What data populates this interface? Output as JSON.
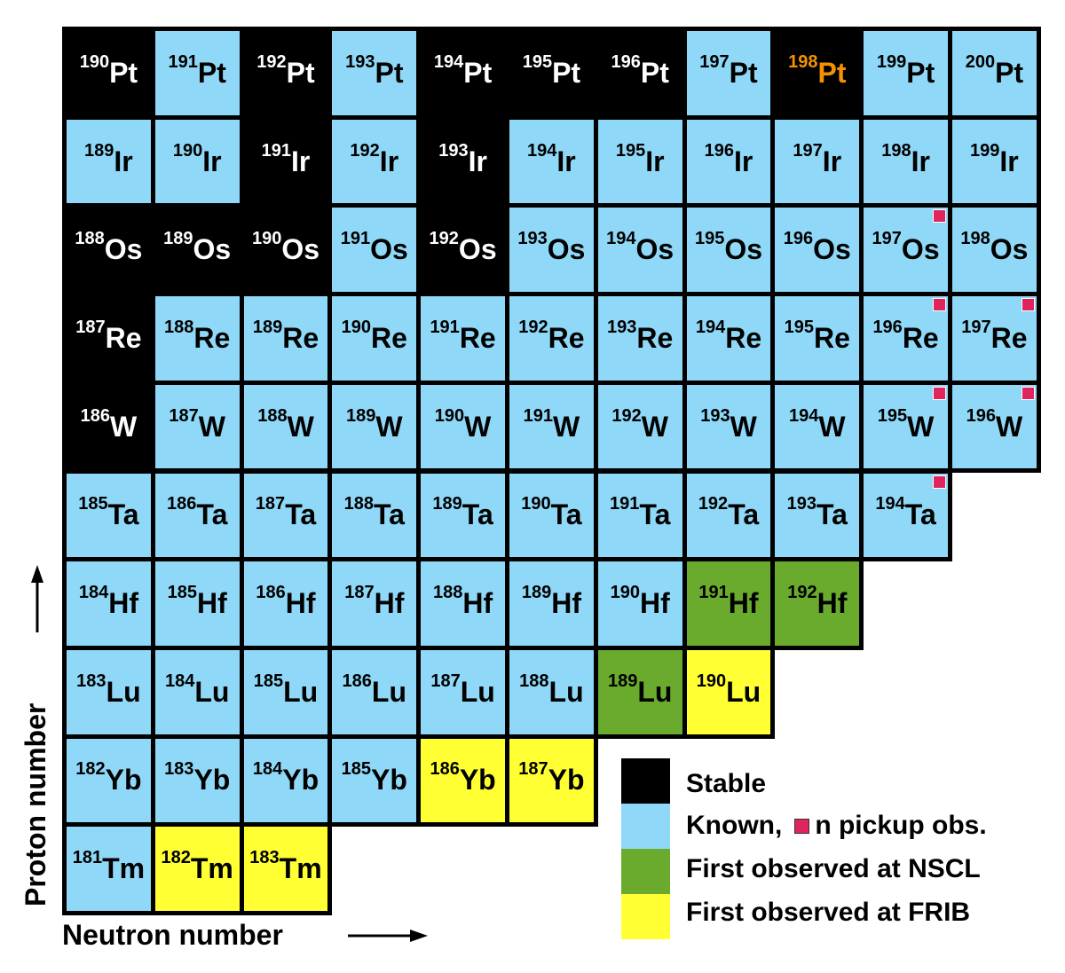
{
  "rows": [
    {
      "symbol": "Pt",
      "cells": [
        {
          "mass": 190,
          "status": "stable"
        },
        {
          "mass": 191,
          "status": "known"
        },
        {
          "mass": 192,
          "status": "stable"
        },
        {
          "mass": 193,
          "status": "known"
        },
        {
          "mass": 194,
          "status": "stable"
        },
        {
          "mass": 195,
          "status": "stable"
        },
        {
          "mass": 196,
          "status": "stable"
        },
        {
          "mass": 197,
          "status": "known"
        },
        {
          "mass": 198,
          "status": "stable",
          "highlight": "#f39200"
        },
        {
          "mass": 199,
          "status": "known"
        },
        {
          "mass": 200,
          "status": "known"
        }
      ]
    },
    {
      "symbol": "Ir",
      "cells": [
        {
          "mass": 189,
          "status": "known"
        },
        {
          "mass": 190,
          "status": "known"
        },
        {
          "mass": 191,
          "status": "stable"
        },
        {
          "mass": 192,
          "status": "known"
        },
        {
          "mass": 193,
          "status": "stable"
        },
        {
          "mass": 194,
          "status": "known"
        },
        {
          "mass": 195,
          "status": "known"
        },
        {
          "mass": 196,
          "status": "known"
        },
        {
          "mass": 197,
          "status": "known"
        },
        {
          "mass": 198,
          "status": "known"
        },
        {
          "mass": 199,
          "status": "known"
        }
      ]
    },
    {
      "symbol": "Os",
      "cells": [
        {
          "mass": 188,
          "status": "stable"
        },
        {
          "mass": 189,
          "status": "stable"
        },
        {
          "mass": 190,
          "status": "stable"
        },
        {
          "mass": 191,
          "status": "known"
        },
        {
          "mass": 192,
          "status": "stable"
        },
        {
          "mass": 193,
          "status": "known"
        },
        {
          "mass": 194,
          "status": "known"
        },
        {
          "mass": 195,
          "status": "known"
        },
        {
          "mass": 196,
          "status": "known"
        },
        {
          "mass": 197,
          "status": "known",
          "pickup": true
        },
        {
          "mass": 198,
          "status": "known"
        }
      ]
    },
    {
      "symbol": "Re",
      "cells": [
        {
          "mass": 187,
          "status": "stable"
        },
        {
          "mass": 188,
          "status": "known"
        },
        {
          "mass": 189,
          "status": "known"
        },
        {
          "mass": 190,
          "status": "known"
        },
        {
          "mass": 191,
          "status": "known"
        },
        {
          "mass": 192,
          "status": "known"
        },
        {
          "mass": 193,
          "status": "known"
        },
        {
          "mass": 194,
          "status": "known"
        },
        {
          "mass": 195,
          "status": "known"
        },
        {
          "mass": 196,
          "status": "known",
          "pickup": true
        },
        {
          "mass": 197,
          "status": "known",
          "pickup": true
        }
      ]
    },
    {
      "symbol": "W",
      "cells": [
        {
          "mass": 186,
          "status": "stable"
        },
        {
          "mass": 187,
          "status": "known"
        },
        {
          "mass": 188,
          "status": "known"
        },
        {
          "mass": 189,
          "status": "known"
        },
        {
          "mass": 190,
          "status": "known"
        },
        {
          "mass": 191,
          "status": "known"
        },
        {
          "mass": 192,
          "status": "known"
        },
        {
          "mass": 193,
          "status": "known"
        },
        {
          "mass": 194,
          "status": "known"
        },
        {
          "mass": 195,
          "status": "known",
          "pickup": true
        },
        {
          "mass": 196,
          "status": "known",
          "pickup": true
        }
      ]
    },
    {
      "symbol": "Ta",
      "cells": [
        {
          "mass": 185,
          "status": "known"
        },
        {
          "mass": 186,
          "status": "known"
        },
        {
          "mass": 187,
          "status": "known"
        },
        {
          "mass": 188,
          "status": "known"
        },
        {
          "mass": 189,
          "status": "known"
        },
        {
          "mass": 190,
          "status": "known"
        },
        {
          "mass": 191,
          "status": "known"
        },
        {
          "mass": 192,
          "status": "known"
        },
        {
          "mass": 193,
          "status": "known"
        },
        {
          "mass": 194,
          "status": "known",
          "pickup": true
        }
      ]
    },
    {
      "symbol": "Hf",
      "cells": [
        {
          "mass": 184,
          "status": "known"
        },
        {
          "mass": 185,
          "status": "known"
        },
        {
          "mass": 186,
          "status": "known"
        },
        {
          "mass": 187,
          "status": "known"
        },
        {
          "mass": 188,
          "status": "known"
        },
        {
          "mass": 189,
          "status": "known"
        },
        {
          "mass": 190,
          "status": "known"
        },
        {
          "mass": 191,
          "status": "nscl"
        },
        {
          "mass": 192,
          "status": "nscl"
        }
      ]
    },
    {
      "symbol": "Lu",
      "cells": [
        {
          "mass": 183,
          "status": "known"
        },
        {
          "mass": 184,
          "status": "known"
        },
        {
          "mass": 185,
          "status": "known"
        },
        {
          "mass": 186,
          "status": "known"
        },
        {
          "mass": 187,
          "status": "known"
        },
        {
          "mass": 188,
          "status": "known"
        },
        {
          "mass": 189,
          "status": "nscl"
        },
        {
          "mass": 190,
          "status": "frib"
        }
      ]
    },
    {
      "symbol": "Yb",
      "cells": [
        {
          "mass": 182,
          "status": "known"
        },
        {
          "mass": 183,
          "status": "known"
        },
        {
          "mass": 184,
          "status": "known"
        },
        {
          "mass": 185,
          "status": "known"
        },
        {
          "mass": 186,
          "status": "frib"
        },
        {
          "mass": 187,
          "status": "frib"
        }
      ]
    },
    {
      "symbol": "Tm",
      "cells": [
        {
          "mass": 181,
          "status": "known"
        },
        {
          "mass": 182,
          "status": "frib"
        },
        {
          "mass": 183,
          "status": "frib"
        }
      ]
    }
  ],
  "legend": [
    {
      "status": "stable",
      "color": "#000000",
      "label": "Stable"
    },
    {
      "status": "known",
      "color": "#8fd8f7",
      "label": "Known,",
      "marker_label": "n pickup obs."
    },
    {
      "status": "nscl",
      "color": "#6aab2e",
      "label": "First observed at NSCL"
    },
    {
      "status": "frib",
      "color": "#ffff33",
      "label": "First observed at FRIB"
    }
  ],
  "pickup_color": "#e0245e",
  "axis_labels": {
    "y": "Proton number",
    "x": "Neutron number"
  }
}
